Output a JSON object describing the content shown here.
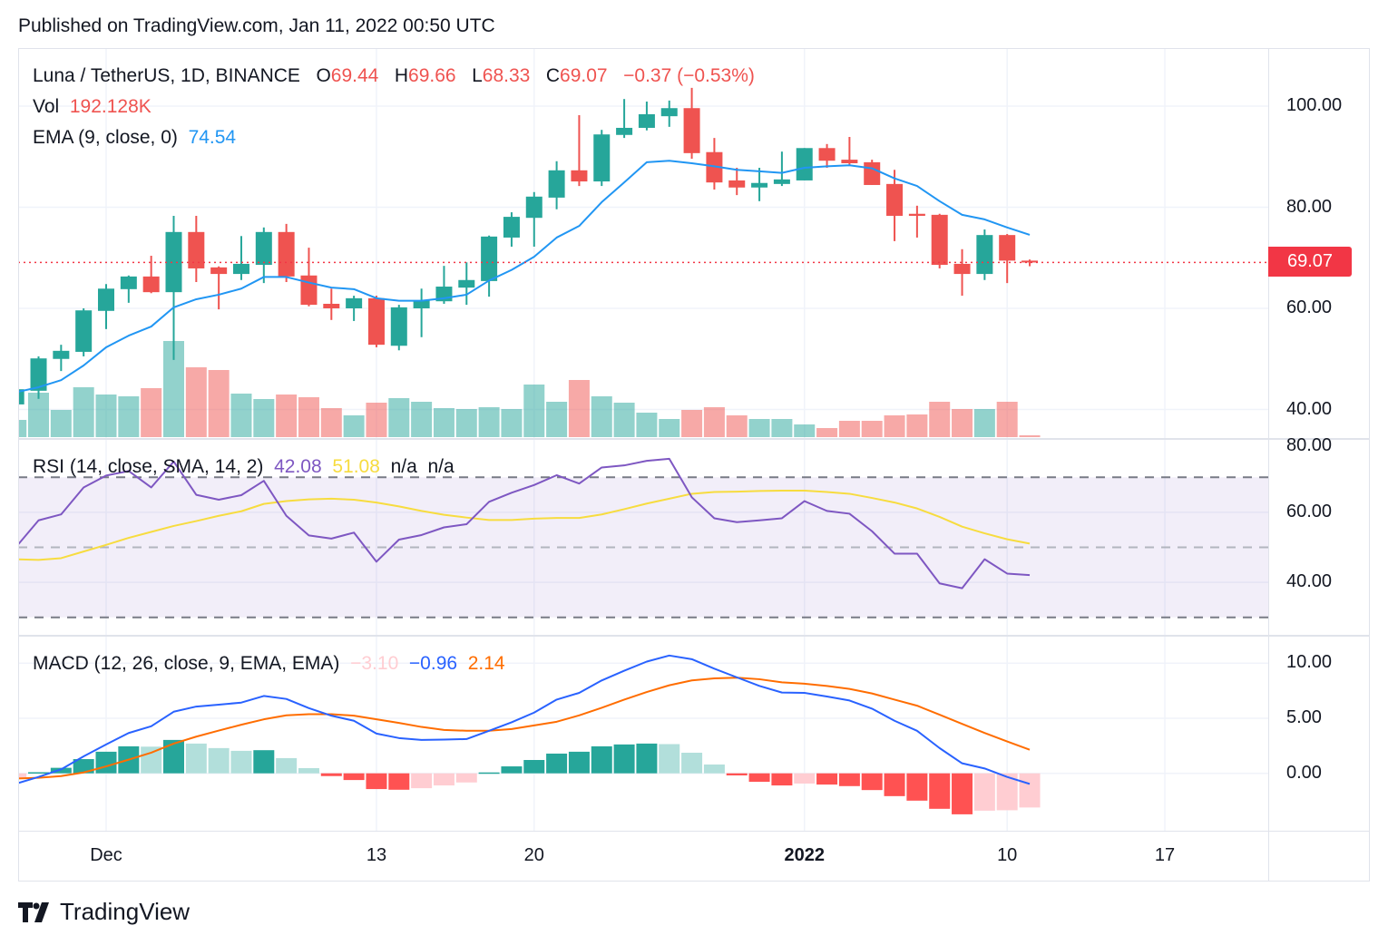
{
  "header": {
    "published": "Published on TradingView.com, Jan 11, 2022 00:50 UTC"
  },
  "legend": {
    "symbol": "Luna / TetherUS, 1D, BINANCE",
    "o_label": "O",
    "o": "69.44",
    "h_label": "H",
    "h": "69.66",
    "l_label": "L",
    "l": "68.33",
    "c_label": "C",
    "c": "69.07",
    "change": "−0.37 (−0.53%)",
    "vol_label": "Vol",
    "vol": "192.128K",
    "ema_label": "EMA (9, close, 0)",
    "ema": "74.54",
    "rsi_label": "RSI (14, close, SMA, 14, 2)",
    "rsi": "42.08",
    "rsi_sma": "51.08",
    "rsi_na1": "n/a",
    "rsi_na2": "n/a",
    "macd_label": "MACD (12, 26, close, 9, EMA, EMA)",
    "macd_hist": "−3.10",
    "macd": "−0.96",
    "macd_signal": "2.14"
  },
  "colors": {
    "up": "#26a69a",
    "down": "#ef5350",
    "ema": "#2196f3",
    "rsi": "#7e57c2",
    "rsi_sma": "#f7dc3f",
    "macd": "#2962ff",
    "signal": "#ff6d00",
    "hist_up_strong": "#26a69a",
    "hist_up_weak": "#b2dfdb",
    "hist_down_strong": "#ff5252",
    "hist_down_weak": "#ffcdd2",
    "last_price": "#f23645"
  },
  "price_axis": {
    "labels": [
      "100.00",
      "80.00",
      "60.00",
      "40.00"
    ],
    "values": [
      100,
      80,
      60,
      40
    ],
    "last_price": "69.07"
  },
  "rsi_axis": {
    "labels": [
      "80.00",
      "60.00",
      "40.00"
    ],
    "values": [
      80,
      60,
      40
    ],
    "bands": [
      70,
      50,
      30
    ]
  },
  "macd_axis": {
    "labels": [
      "10.00",
      "5.00",
      "0.00"
    ],
    "values": [
      10,
      5,
      0
    ]
  },
  "time_axis": {
    "labels": [
      {
        "text": "Dec",
        "date": "2021-12-01",
        "bold": false
      },
      {
        "text": "13",
        "date": "2021-12-13",
        "bold": false
      },
      {
        "text": "20",
        "date": "2021-12-20",
        "bold": false
      },
      {
        "text": "2022",
        "date": "2022-01-01",
        "bold": true
      },
      {
        "text": "10",
        "date": "2022-01-10",
        "bold": false
      },
      {
        "text": "17",
        "date": "2022-01-17",
        "bold": false
      }
    ]
  },
  "branding": {
    "logo_text": "TradingView"
  },
  "chart_data": {
    "type": "candlestick",
    "start_date": "2021-11-27",
    "ohlc": [
      [
        41,
        44.5,
        40.5,
        44
      ],
      [
        43.7,
        50.5,
        42.1,
        50.1
      ],
      [
        50,
        52.8,
        47.6,
        51.6
      ],
      [
        51.4,
        60,
        50.5,
        59.6
      ],
      [
        59.5,
        64.8,
        55.9,
        63.9
      ],
      [
        63.8,
        66.5,
        61.1,
        66.3
      ],
      [
        66.3,
        70.4,
        63,
        63.2
      ],
      [
        63.2,
        78.3,
        49.8,
        75.1
      ],
      [
        75.1,
        78.3,
        65.2,
        67.9
      ],
      [
        68.1,
        68.3,
        59.8,
        66.8
      ],
      [
        66.8,
        74.3,
        65.6,
        68.8
      ],
      [
        68.6,
        76,
        65,
        75.1
      ],
      [
        75.1,
        76.7,
        65.2,
        66.3
      ],
      [
        66.5,
        72,
        60.4,
        60.7
      ],
      [
        60.9,
        63.9,
        57.7,
        60
      ],
      [
        60,
        62.5,
        57.5,
        62
      ],
      [
        62,
        62.5,
        52.3,
        52.8
      ],
      [
        52.6,
        60.7,
        51.7,
        60.2
      ],
      [
        60,
        63.9,
        54.3,
        61.6
      ],
      [
        61.4,
        68.4,
        60.9,
        64.3
      ],
      [
        64.1,
        69.1,
        60.7,
        65.6
      ],
      [
        65.4,
        74.4,
        62.3,
        74.2
      ],
      [
        74,
        79,
        72.2,
        78.1
      ],
      [
        77.9,
        83,
        72.2,
        82.1
      ],
      [
        81.9,
        89.1,
        79.6,
        87.3
      ],
      [
        87.3,
        98.2,
        84.2,
        85.1
      ],
      [
        85.1,
        95.3,
        84.2,
        94.4
      ],
      [
        94.3,
        101.4,
        93.7,
        95.7
      ],
      [
        95.7,
        100.9,
        95.2,
        98.4
      ],
      [
        98,
        101.1,
        95.9,
        99.6
      ],
      [
        99.6,
        103.6,
        89.6,
        90.7
      ],
      [
        90.9,
        93.7,
        83.5,
        84.9
      ],
      [
        85.3,
        87.8,
        82.4,
        83.9
      ],
      [
        83.9,
        87.8,
        81.2,
        84.8
      ],
      [
        84.6,
        91,
        84.2,
        85.5
      ],
      [
        85.3,
        91.7,
        85.3,
        91.7
      ],
      [
        91.7,
        92.5,
        87.8,
        89.2
      ],
      [
        89.4,
        93.9,
        88.3,
        88.7
      ],
      [
        88.9,
        89.4,
        84.4,
        84.4
      ],
      [
        84.6,
        87.4,
        73.3,
        78.3
      ],
      [
        78.7,
        80.3,
        74,
        78.3
      ],
      [
        78.5,
        78.7,
        67.9,
        68.6
      ],
      [
        68.8,
        71.7,
        62.5,
        66.8
      ],
      [
        66.8,
        75.6,
        65.6,
        74.5
      ],
      [
        74.5,
        74.7,
        65,
        69.44
      ],
      [
        69.44,
        69.66,
        68.33,
        69.07
      ]
    ],
    "volume_k": [
      1824,
      4704,
      2880,
      5280,
      4512,
      4320,
      5184,
      10176,
      7392,
      7104,
      4608,
      4032,
      4512,
      4224,
      3072,
      2304,
      3648,
      4128,
      3744,
      3072,
      2976,
      3168,
      2976,
      5568,
      3744,
      6048,
      4320,
      3648,
      2592,
      1920,
      2880,
      3168,
      2304,
      1920,
      1920,
      1344,
      960,
      1728,
      1728,
      2304,
      2400,
      3744,
      2976,
      2976,
      3744,
      192.128
    ],
    "ema9": [
      43.4,
      44.4,
      45.8,
      48.7,
      52.3,
      54.6,
      56.4,
      60.2,
      61.8,
      62.7,
      63.9,
      66.2,
      66.2,
      65.1,
      64.1,
      63.8,
      62.0,
      61.5,
      61.5,
      62.0,
      62.7,
      65.5,
      67.6,
      70.2,
      74.0,
      76.3,
      81.0,
      84.9,
      88.9,
      89.2,
      88.7,
      88.1,
      87.4,
      87.1,
      86.8,
      87.8,
      88.1,
      88.3,
      87.7,
      85.7,
      84.2,
      81.2,
      78.5,
      77.6,
      76.0,
      74.54
    ],
    "rsi": [
      50.1,
      57.7,
      59.4,
      67.1,
      70.5,
      71.8,
      67.1,
      74.5,
      65.0,
      63.6,
      64.9,
      69.0,
      59.0,
      53.4,
      52.5,
      54.2,
      45.9,
      52.2,
      53.5,
      55.7,
      56.6,
      63.0,
      65.6,
      67.8,
      70.6,
      68.2,
      72.8,
      73.4,
      74.7,
      75.3,
      64.3,
      58.3,
      57.2,
      57.7,
      58.3,
      63.2,
      60.4,
      59.6,
      54.6,
      48.2,
      48.2,
      39.7,
      38.3,
      46.6,
      42.5,
      42.08
    ],
    "rsi_sma": [
      46.6,
      46.4,
      46.9,
      48.8,
      50.7,
      52.7,
      54.4,
      56.1,
      57.5,
      59.0,
      60.3,
      62.4,
      63.2,
      63.7,
      63.9,
      63.6,
      62.8,
      61.7,
      60.4,
      59.3,
      58.5,
      57.8,
      57.8,
      58.2,
      58.4,
      58.4,
      59.4,
      60.9,
      62.5,
      63.9,
      65.3,
      65.8,
      65.9,
      66.1,
      66.2,
      66.2,
      65.8,
      65.3,
      64.1,
      62.8,
      61.1,
      58.7,
      55.9,
      54.0,
      52.3,
      51.08
    ],
    "macd": [
      -0.94,
      -0.33,
      0.36,
      1.54,
      2.62,
      3.66,
      4.27,
      5.59,
      6.06,
      6.23,
      6.42,
      7.02,
      6.75,
      5.92,
      5.23,
      4.77,
      3.61,
      3.2,
      3.03,
      3.06,
      3.11,
      3.86,
      4.63,
      5.51,
      6.69,
      7.3,
      8.43,
      9.31,
      10.14,
      10.69,
      10.36,
      9.5,
      8.71,
      7.93,
      7.33,
      7.3,
      6.97,
      6.61,
      5.87,
      4.77,
      3.86,
      2.29,
      0.91,
      0.44,
      -0.33,
      -0.96
    ],
    "signal": [
      -0.47,
      -0.41,
      -0.25,
      0.08,
      0.63,
      1.24,
      1.87,
      2.7,
      3.33,
      3.88,
      4.41,
      4.9,
      5.26,
      5.37,
      5.37,
      5.23,
      4.9,
      4.57,
      4.21,
      3.94,
      3.86,
      3.86,
      4.02,
      4.35,
      4.68,
      5.26,
      5.95,
      6.69,
      7.38,
      7.99,
      8.43,
      8.62,
      8.68,
      8.54,
      8.26,
      8.13,
      7.93,
      7.66,
      7.25,
      6.69,
      6.14,
      5.32,
      4.49,
      3.66,
      2.89,
      2.14
    ],
    "histogram": [
      -0.47,
      0.1,
      0.5,
      1.29,
      1.96,
      2.45,
      2.42,
      3.03,
      2.7,
      2.29,
      2.04,
      2.1,
      1.38,
      0.47,
      -0.25,
      -0.61,
      -1.43,
      -1.49,
      -1.35,
      -1.1,
      -0.83,
      0.08,
      0.63,
      1.21,
      1.79,
      1.96,
      2.45,
      2.62,
      2.7,
      2.65,
      1.87,
      0.8,
      -0.19,
      -0.77,
      -1.1,
      -0.93,
      -1.02,
      -1.16,
      -1.52,
      -2.07,
      -2.48,
      -3.22,
      -3.72,
      -3.39,
      -3.35,
      -3.1
    ],
    "last_price": 69.07,
    "price_range": [
      35,
      105
    ],
    "rsi_range": [
      30,
      80
    ],
    "macd_range": [
      -5,
      11
    ],
    "grid": true
  }
}
